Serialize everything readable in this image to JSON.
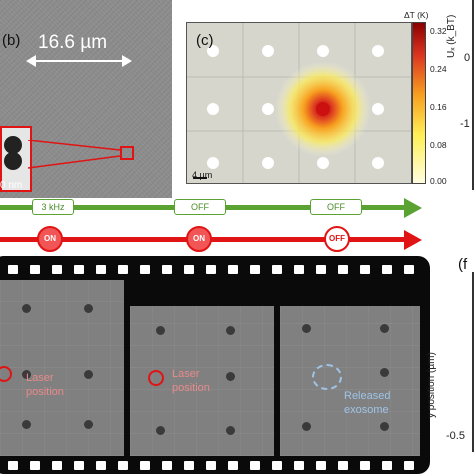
{
  "panel_b": {
    "label": "(b)",
    "scale_text": "16.6 µm",
    "inset_scale": "0 nm"
  },
  "panel_c": {
    "label": "(c)",
    "scale_text": "4 µm",
    "colorbar_title": "ΔT (K)",
    "colorbar_ticks": [
      "0.32",
      "0.24",
      "0.16",
      "0.08",
      "0.00"
    ],
    "colors": {
      "low": "#fffde0",
      "mid": "#f7a020",
      "high": "#8b0000"
    }
  },
  "right_axis_c": {
    "label": "Uₓ (k_BT)",
    "ticks": [
      "0",
      "-1"
    ]
  },
  "timeline": {
    "green_labels": [
      "3 kHz",
      "OFF",
      "OFF"
    ],
    "red_states": [
      "ON",
      "ON",
      "OFF"
    ],
    "colors": {
      "green": "#5aa332",
      "red": "#e01414"
    }
  },
  "frames": {
    "frame1_text": [
      "Laser",
      "position"
    ],
    "frame2_text": [
      "Laser",
      "position"
    ],
    "frame3_text": [
      "Released",
      "exosome"
    ]
  },
  "panel_f": {
    "label": "(f",
    "ylabel": "y position (µm)",
    "tick_bottom": "-0.5"
  }
}
